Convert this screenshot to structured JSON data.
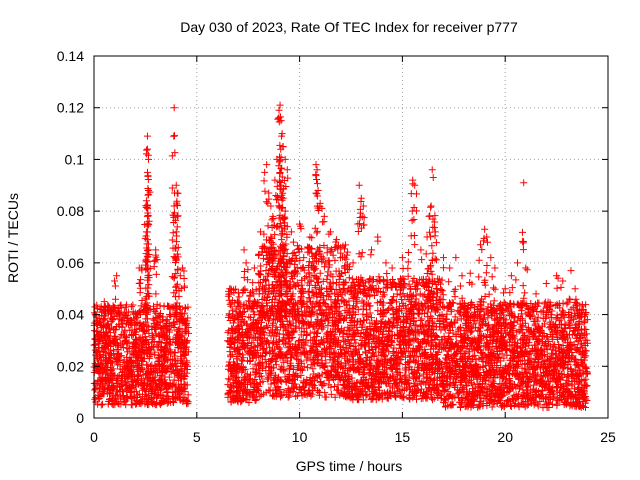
{
  "chart_data": {
    "type": "scatter",
    "title": "Day 030 of 2023, Rate Of TEC Index for receiver p777",
    "xlabel": "GPS time / hours",
    "ylabel": "ROTI / TECUs",
    "xlim": [
      0,
      25
    ],
    "ylim": [
      0,
      0.14
    ],
    "xticks": [
      0,
      5,
      10,
      15,
      20,
      25
    ],
    "yticks": [
      0,
      0.02,
      0.04,
      0.06,
      0.08,
      0.1,
      0.12,
      0.14
    ],
    "xtick_labels": [
      "0",
      "5",
      "10",
      "15",
      "20",
      "25"
    ],
    "ytick_labels": [
      "0",
      "0.02",
      "0.04",
      "0.06",
      "0.08",
      "0.1",
      "0.12",
      "0.14"
    ],
    "grid": true,
    "marker": "plus",
    "color": "#ff0000",
    "density_profile": [
      {
        "x0": 0.0,
        "x1": 4.6,
        "lo": 0.005,
        "hi": 0.032,
        "spread": 0.012
      },
      {
        "x0": 6.5,
        "x1": 8.0,
        "lo": 0.006,
        "hi": 0.035,
        "spread": 0.015
      },
      {
        "x0": 8.0,
        "x1": 12.5,
        "lo": 0.008,
        "hi": 0.045,
        "spread": 0.022
      },
      {
        "x0": 12.5,
        "x1": 17.0,
        "lo": 0.007,
        "hi": 0.038,
        "spread": 0.016
      },
      {
        "x0": 17.0,
        "x1": 24.0,
        "lo": 0.004,
        "hi": 0.032,
        "spread": 0.013
      }
    ],
    "spikes": [
      [
        0.5,
        0.045
      ],
      [
        1.0,
        0.053
      ],
      [
        1.1,
        0.055
      ],
      [
        2.2,
        0.052
      ],
      [
        2.3,
        0.058
      ],
      [
        2.6,
        0.109
      ],
      [
        2.6,
        0.104
      ],
      [
        2.65,
        0.1
      ],
      [
        2.6,
        0.095
      ],
      [
        2.65,
        0.088
      ],
      [
        2.55,
        0.084
      ],
      [
        2.6,
        0.078
      ],
      [
        2.55,
        0.072
      ],
      [
        2.6,
        0.069
      ],
      [
        2.65,
        0.065
      ],
      [
        3.0,
        0.065
      ],
      [
        3.0,
        0.063
      ],
      [
        2.2,
        0.058
      ],
      [
        3.9,
        0.12
      ],
      [
        4.0,
        0.09
      ],
      [
        4.05,
        0.087
      ],
      [
        3.9,
        0.082
      ],
      [
        4.05,
        0.078
      ],
      [
        4.0,
        0.072
      ],
      [
        4.1,
        0.066
      ],
      [
        3.95,
        0.062
      ],
      [
        4.3,
        0.058
      ],
      [
        4.2,
        0.055
      ],
      [
        4.4,
        0.051
      ],
      [
        6.6,
        0.05
      ],
      [
        6.6,
        0.048
      ],
      [
        7.3,
        0.065
      ],
      [
        7.4,
        0.06
      ],
      [
        7.8,
        0.058
      ],
      [
        8.1,
        0.072
      ],
      [
        8.3,
        0.095
      ],
      [
        8.4,
        0.098
      ],
      [
        8.5,
        0.087
      ],
      [
        8.6,
        0.082
      ],
      [
        8.7,
        0.078
      ],
      [
        8.8,
        0.092
      ],
      [
        8.9,
        0.1
      ],
      [
        9.0,
        0.119
      ],
      [
        9.05,
        0.121
      ],
      [
        9.1,
        0.115
      ],
      [
        9.15,
        0.11
      ],
      [
        9.2,
        0.105
      ],
      [
        9.3,
        0.1
      ],
      [
        9.4,
        0.096
      ],
      [
        9.1,
        0.09
      ],
      [
        9.2,
        0.085
      ],
      [
        9.3,
        0.08
      ],
      [
        9.4,
        0.074
      ],
      [
        8.6,
        0.07
      ],
      [
        9.6,
        0.072
      ],
      [
        9.7,
        0.068
      ],
      [
        10.0,
        0.075
      ],
      [
        10.2,
        0.062
      ],
      [
        10.5,
        0.07
      ],
      [
        10.8,
        0.098
      ],
      [
        10.85,
        0.096
      ],
      [
        10.9,
        0.088
      ],
      [
        11.0,
        0.083
      ],
      [
        11.2,
        0.078
      ],
      [
        11.5,
        0.072
      ],
      [
        11.8,
        0.069
      ],
      [
        12.0,
        0.066
      ],
      [
        12.3,
        0.063
      ],
      [
        12.6,
        0.06
      ],
      [
        12.9,
        0.09
      ],
      [
        13.0,
        0.085
      ],
      [
        13.1,
        0.082
      ],
      [
        13.5,
        0.065
      ],
      [
        13.8,
        0.07
      ],
      [
        14.2,
        0.06
      ],
      [
        14.5,
        0.058
      ],
      [
        15.0,
        0.062
      ],
      [
        15.3,
        0.064
      ],
      [
        15.5,
        0.092
      ],
      [
        15.6,
        0.09
      ],
      [
        15.9,
        0.065
      ],
      [
        16.2,
        0.07
      ],
      [
        16.3,
        0.078
      ],
      [
        16.4,
        0.082
      ],
      [
        16.45,
        0.096
      ],
      [
        16.5,
        0.093
      ],
      [
        16.6,
        0.072
      ],
      [
        17.0,
        0.062
      ],
      [
        17.3,
        0.058
      ],
      [
        17.6,
        0.062
      ],
      [
        17.9,
        0.055
      ],
      [
        18.3,
        0.056
      ],
      [
        18.8,
        0.067
      ],
      [
        19.0,
        0.073
      ],
      [
        19.1,
        0.07
      ],
      [
        19.3,
        0.062
      ],
      [
        19.5,
        0.058
      ],
      [
        20.0,
        0.05
      ],
      [
        20.3,
        0.055
      ],
      [
        20.6,
        0.06
      ],
      [
        20.9,
        0.091
      ],
      [
        21.0,
        0.058
      ],
      [
        21.5,
        0.048
      ],
      [
        22.0,
        0.052
      ],
      [
        22.5,
        0.055
      ],
      [
        22.8,
        0.053
      ],
      [
        23.2,
        0.057
      ],
      [
        23.4,
        0.05
      ],
      [
        23.8,
        0.042
      ]
    ]
  }
}
